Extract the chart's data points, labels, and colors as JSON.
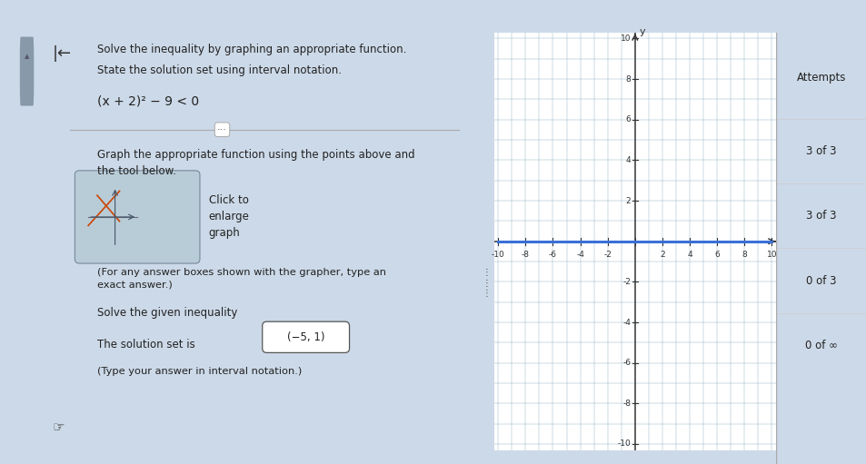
{
  "bg_top_bar": "#2d7a6e",
  "bg_color": "#ccd9e8",
  "left_panel_color": "#dce8f0",
  "graph_bg": "#ffffff",
  "right_panel_color": "#e8eef4",
  "yellow_strip": "#d4c87a",
  "grid_color": "#8aaabf",
  "axis_color": "#333333",
  "blue_line_color": "#3a6fd8",
  "xmin": -10,
  "xmax": 10,
  "ymin": -10,
  "ymax": 10,
  "title_line1": "Solve the inequality by graphing an appropriate function.",
  "title_line2": "State the solution set using interval notation.",
  "eq_text": "(x + 2)² − 9 < 0",
  "graph_instr": "Graph the appropriate function using the points above and\nthe tool below.",
  "click_label": "Click to\nenlarge\ngraph",
  "answer_instr": "(For any answer boxes shown with the grapher, type an\nexact answer.)",
  "solve_label": "Solve the given inequality",
  "solution_prefix": "The solution set is",
  "solution_value": "(−5, 1)",
  "footer": "(Type your answer in interval notation.)",
  "attempts_title": "Attempts",
  "attempt_rows": [
    "3 of 3",
    "3 of 3",
    "0 of 3",
    "0 of ∞"
  ],
  "horizontal_line_y": 0
}
